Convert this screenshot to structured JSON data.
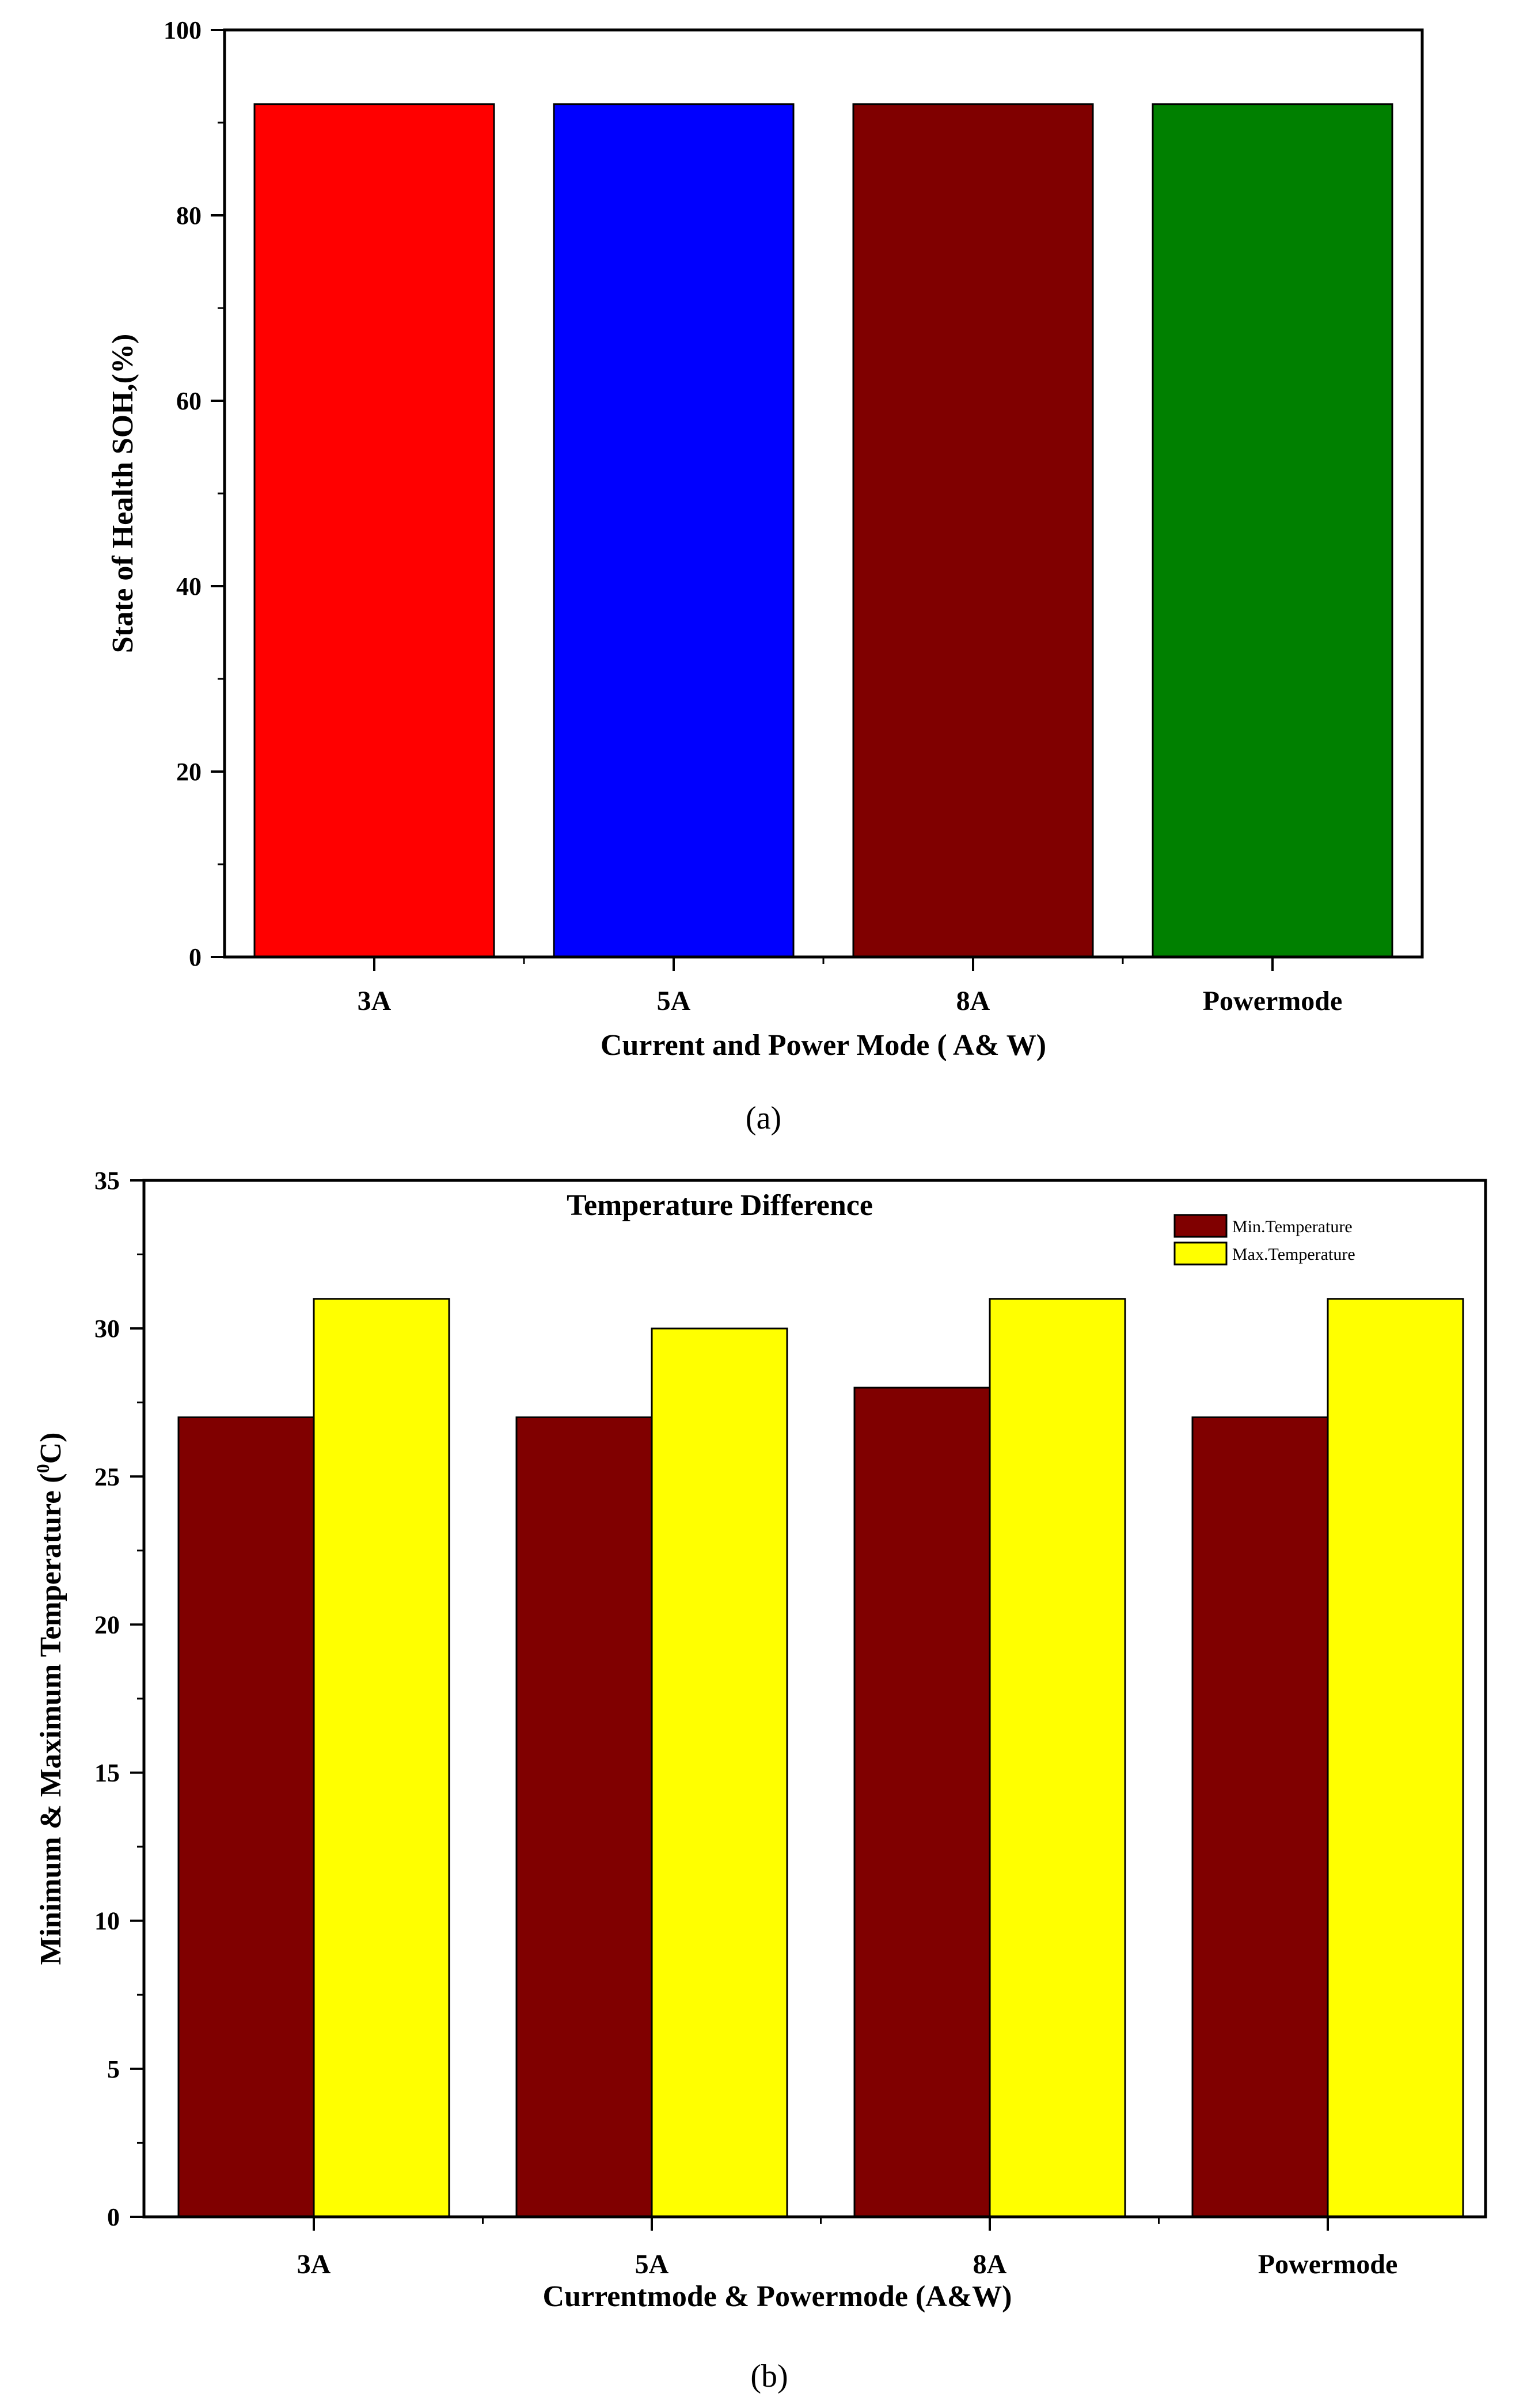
{
  "chart_data": [
    {
      "type": "bar",
      "panel_label": "(a)",
      "categories": [
        "3A",
        "5A",
        "8A",
        "Powermode"
      ],
      "series": [
        {
          "name": "SOH",
          "values": [
            92,
            92,
            92,
            92
          ]
        }
      ],
      "bar_colors": [
        "#ff0000",
        "#0000ff",
        "#800000",
        "#008000"
      ],
      "title": "",
      "xlabel": "Current and Power Mode ( A& W)",
      "ylabel": "State of Health SOH,(%)",
      "ylim": [
        0,
        100
      ],
      "yticks": [
        0,
        20,
        40,
        60,
        80,
        100
      ],
      "grid": false
    },
    {
      "type": "bar",
      "panel_label": "(b)",
      "categories": [
        "3A",
        "5A",
        "8A",
        "Powermode"
      ],
      "series": [
        {
          "name": "Min.Temperature",
          "values": [
            27,
            27,
            28,
            27
          ],
          "color": "#800000"
        },
        {
          "name": "Max.Temperature",
          "values": [
            31,
            30,
            31,
            31
          ],
          "color": "#ffff00"
        }
      ],
      "title": "Temperature Difference",
      "xlabel": "Currentmode & Powermode (A&W)",
      "ylabel_main": "Minimum & Maximum Temperature (",
      "ylabel_sup": "0",
      "ylabel_end": "C)",
      "ylim": [
        0,
        35
      ],
      "yticks": [
        0,
        5,
        10,
        15,
        20,
        25,
        30,
        35
      ],
      "legend_position": "top-right",
      "grid": false
    }
  ]
}
